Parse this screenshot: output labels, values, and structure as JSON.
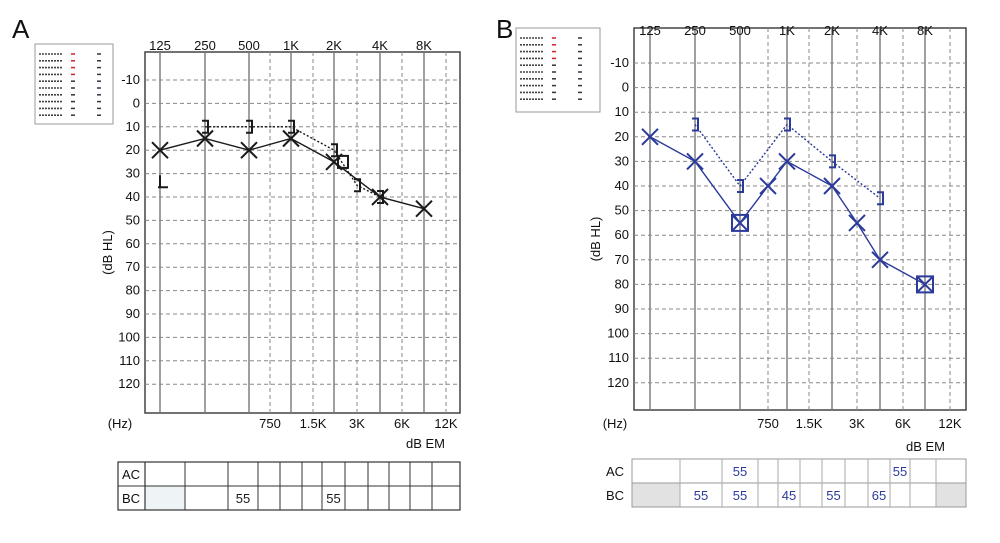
{
  "chart_data": [
    {
      "panel_label": "A",
      "type": "line",
      "frequency_labels_top": [
        "125",
        "250",
        "500",
        "1K",
        "2K",
        "4K",
        "8K"
      ],
      "frequency_labels_bottom": [
        "750",
        "1.5K",
        "3K",
        "6K",
        "12K"
      ],
      "hz_label": "(Hz)",
      "ylabel": "(dB HL)",
      "xunit_label": "dB EM",
      "y_ticks": [
        "-10",
        "0",
        "10",
        "20",
        "30",
        "40",
        "50",
        "60",
        "70",
        "80",
        "90",
        "100",
        "110",
        "120"
      ],
      "ylim": [
        -10,
        120
      ],
      "series": [
        {
          "marker": "x",
          "style": "solid",
          "points": [
            [
              "125",
              20
            ],
            [
              "250",
              15
            ],
            [
              "500",
              20
            ],
            [
              "1K",
              15
            ],
            [
              "2K",
              25
            ],
            [
              "4K",
              40
            ],
            [
              "8K",
              45
            ]
          ]
        },
        {
          "marker": "bracket",
          "style": "dotted",
          "points": [
            [
              "250",
              10
            ],
            [
              "500",
              10
            ],
            [
              "1K",
              10
            ],
            [
              "2K",
              20
            ],
            [
              "3K",
              35
            ],
            [
              "4K",
              40
            ]
          ]
        }
      ],
      "extra_markers": [
        {
          "marker": "bracket-bottom",
          "x": "125",
          "y": 35
        }
      ],
      "table": {
        "rows": [
          {
            "label": "AC",
            "cells": [
              "",
              "",
              "",
              "",
              "",
              "",
              "",
              "",
              "",
              "",
              "",
              "",
              ""
            ]
          },
          {
            "label": "BC",
            "cells": [
              "",
              "",
              "55",
              "",
              "",
              "",
              "55",
              "",
              "",
              "",
              "",
              "",
              ""
            ]
          }
        ]
      }
    },
    {
      "panel_label": "B",
      "type": "line",
      "frequency_labels_top": [
        "125",
        "250",
        "500",
        "1K",
        "2K",
        "4K",
        "8K"
      ],
      "frequency_labels_bottom": [
        "750",
        "1.5K",
        "3K",
        "6K",
        "12K"
      ],
      "hz_label": "(Hz)",
      "ylabel": "(dB HL)",
      "xunit_label": "dB EM",
      "y_ticks": [
        "-10",
        "0",
        "10",
        "20",
        "30",
        "40",
        "50",
        "60",
        "70",
        "80",
        "90",
        "100",
        "110",
        "120"
      ],
      "ylim": [
        -10,
        120
      ],
      "series": [
        {
          "marker": "x",
          "style": "solid",
          "color": "#2b3a9b",
          "points": [
            [
              "125",
              20
            ],
            [
              "250",
              30
            ],
            [
              "500",
              55
            ],
            [
              "750",
              40
            ],
            [
              "1K",
              30
            ],
            [
              "2K",
              40
            ],
            [
              "3K",
              55
            ],
            [
              "4K",
              70
            ],
            [
              "8K",
              80
            ]
          ]
        },
        {
          "marker": "bracket",
          "style": "dotted",
          "color": "#2b3a9b",
          "points": [
            [
              "250",
              15
            ],
            [
              "500",
              40
            ],
            [
              "1K",
              15
            ],
            [
              "2K",
              30
            ],
            [
              "4K",
              45
            ]
          ]
        }
      ],
      "table": {
        "rows": [
          {
            "label": "AC",
            "cells": [
              "",
              "",
              "55",
              "",
              "",
              "",
              "",
              "",
              "",
              "55",
              ""
            ]
          },
          {
            "label": "BC",
            "cells": [
              "",
              "55",
              "55",
              "",
              "45",
              "",
              "55",
              "",
              "65",
              "",
              ""
            ]
          }
        ]
      }
    }
  ],
  "colors": {
    "a_ink": "#1a1a1a",
    "b_ink": "#2b3a9b",
    "grid": "#555555",
    "legend_red": "#d22222"
  }
}
